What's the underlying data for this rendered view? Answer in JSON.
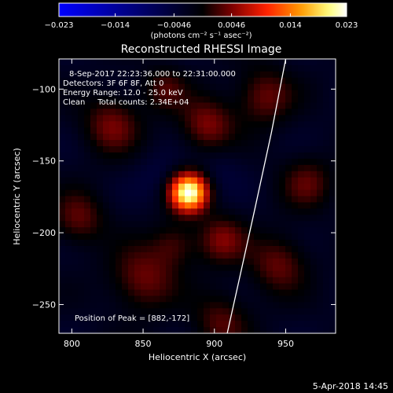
{
  "chart_data": {
    "type": "heatmap",
    "title": "Reconstructed RHESSI Image",
    "xlabel": "Heliocentric X (arcsec)",
    "ylabel": "Heliocentric Y (arcsec)",
    "xlim": [
      791,
      985
    ],
    "ylim": [
      -270,
      -79
    ],
    "x_ticks": [
      800,
      850,
      900,
      950
    ],
    "y_ticks": [
      -100,
      -150,
      -200,
      -250
    ],
    "colorbar": {
      "min": -0.023,
      "max": 0.023,
      "tick_values": [
        -0.023,
        -0.014,
        -0.0046,
        0.0046,
        0.014,
        0.023
      ],
      "tick_labels": [
        "−0.023",
        "−0.014",
        "−0.0046",
        "0.0046",
        "0.014",
        "0.023"
      ],
      "unit_label": "(photons cm⁻² s⁻¹ asec⁻²)",
      "colormap": [
        "#0000ff",
        "#000000",
        "#7a0000",
        "#ff1f00",
        "#ff9a00",
        "#ffff80",
        "#ffffff"
      ]
    },
    "info_lines": [
      "8-Sep-2017 22:23:36.000 to 22:31:00.000",
      "Detectors: 3F 6F 8F, Att 0",
      "Energy Range: 12.0 - 25.0 keV",
      "Clean     Total counts: 2.34E+04"
    ],
    "peak_label": "Position of Peak = [882,-172]",
    "peak": {
      "x": 882,
      "y": -172,
      "value": 0.023
    },
    "limb_curve": [
      [
        950,
        -79
      ],
      [
        940,
        -130
      ],
      [
        928,
        -185
      ],
      [
        918,
        -230
      ],
      [
        909,
        -270
      ]
    ],
    "background_level": -0.0028,
    "features": [
      {
        "x": 882,
        "y": -172,
        "sigma": 9,
        "amp": 0.0258
      },
      {
        "x": 828,
        "y": -125,
        "sigma": 14,
        "amp": 0.0068
      },
      {
        "x": 895,
        "y": -125,
        "sigma": 13,
        "amp": 0.0074
      },
      {
        "x": 935,
        "y": -105,
        "sigma": 14,
        "amp": 0.0065
      },
      {
        "x": 905,
        "y": -205,
        "sigma": 12,
        "amp": 0.007
      },
      {
        "x": 850,
        "y": -232,
        "sigma": 16,
        "amp": 0.0068
      },
      {
        "x": 945,
        "y": -222,
        "sigma": 14,
        "amp": 0.0063
      },
      {
        "x": 905,
        "y": -262,
        "sigma": 14,
        "amp": 0.0055
      },
      {
        "x": 805,
        "y": -190,
        "sigma": 13,
        "amp": 0.006
      },
      {
        "x": 965,
        "y": -165,
        "sigma": 13,
        "amp": 0.0055
      },
      {
        "x": 872,
        "y": -208,
        "sigma": 11,
        "amp": 0.0048
      },
      {
        "x": 865,
        "y": -100,
        "sigma": 11,
        "amp": 0.005
      },
      {
        "x": 860,
        "y": -160,
        "sigma": 12,
        "amp": -0.002
      },
      {
        "x": 905,
        "y": -155,
        "sigma": 12,
        "amp": -0.0018
      }
    ]
  },
  "footer": {
    "date": "5-Apr-2018 14:45"
  }
}
